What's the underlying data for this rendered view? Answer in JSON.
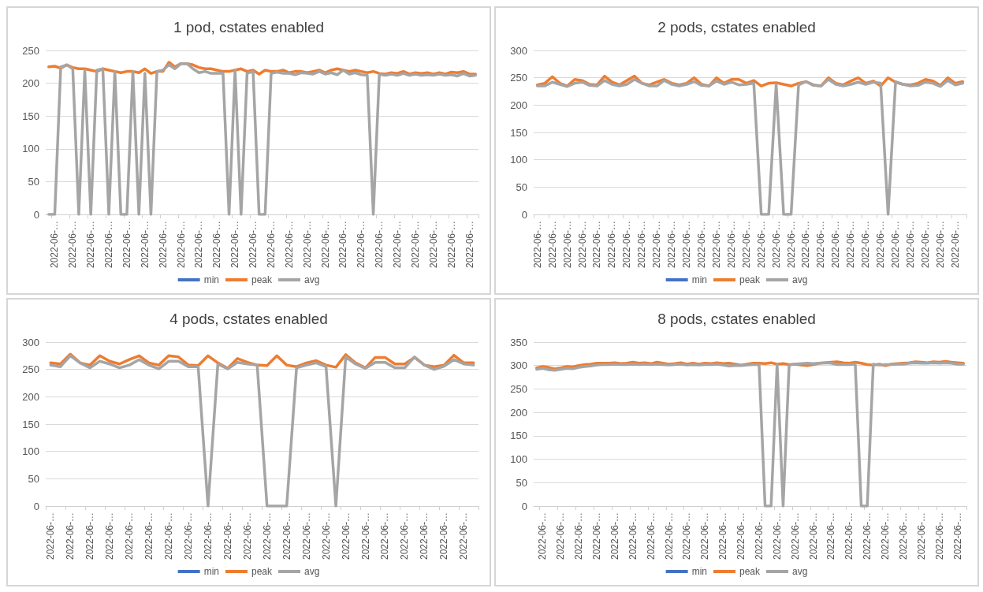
{
  "chart_data": [
    {
      "type": "line",
      "title": "1 pod, cstates enabled",
      "legend": "bottom",
      "grid": "y",
      "marker": "none",
      "line_style": "solid",
      "ylim": [
        0,
        250
      ],
      "yticks": [
        0,
        50,
        100,
        150,
        200,
        250
      ],
      "categories": [
        null,
        "2022-06-…",
        null,
        null,
        "2022-06-…",
        null,
        null,
        "2022-06-…",
        null,
        null,
        "2022-06-…",
        null,
        null,
        "2022-06-…",
        null,
        null,
        "2022-06-…",
        null,
        null,
        "2022-06-…",
        null,
        null,
        "2022-06-…",
        null,
        null,
        "2022-06-…",
        null,
        null,
        "2022-06-…",
        null,
        null,
        "2022-06-…",
        null,
        null,
        "2022-06-…",
        null,
        null,
        "2022-06-…",
        null,
        null,
        "2022-06-…",
        null,
        null,
        "2022-06-…",
        null,
        null,
        "2022-06-…",
        null,
        null,
        "2022-06-…",
        null,
        null,
        "2022-06-…",
        null,
        null,
        "2022-06-…",
        null,
        null,
        "2022-06-…",
        null,
        null,
        "2022-06-…",
        null,
        null,
        "2022-06-…",
        null,
        null,
        "2022-06-…",
        null,
        null,
        "2022-06-…",
        null
      ],
      "series": [
        {
          "name": "min",
          "color": "#4472c4",
          "values": [
            null,
            null,
            null,
            null,
            null,
            null,
            null,
            null,
            null,
            null,
            null,
            null,
            null,
            null,
            null,
            null,
            null,
            null,
            null,
            null,
            null,
            null,
            null,
            null,
            null,
            null,
            null,
            null,
            null,
            null,
            null,
            null,
            null,
            null,
            null,
            null,
            null,
            null,
            null,
            null,
            null,
            null,
            null,
            null,
            null,
            null,
            null,
            null,
            null,
            null,
            null,
            null,
            null,
            null,
            null,
            null,
            null,
            null,
            null,
            null,
            null,
            null,
            null,
            null,
            null,
            null,
            null,
            null,
            null,
            null,
            null,
            null
          ]
        },
        {
          "name": "peak",
          "color": "#ed7d31",
          "values": [
            225,
            226,
            223,
            228,
            224,
            222,
            222,
            220,
            218,
            222,
            220,
            218,
            216,
            218,
            218,
            216,
            222,
            215,
            218,
            218,
            232,
            225,
            230,
            230,
            228,
            224,
            222,
            222,
            220,
            218,
            218,
            220,
            222,
            218,
            220,
            214,
            220,
            218,
            218,
            220,
            216,
            218,
            218,
            216,
            218,
            220,
            216,
            220,
            222,
            220,
            218,
            220,
            218,
            216,
            218,
            215,
            214,
            216,
            215,
            218,
            214,
            216,
            215,
            216,
            214,
            216,
            214,
            217,
            216,
            218,
            214,
            214
          ]
        },
        {
          "name": "avg",
          "color": "#a5a5a5",
          "values": [
            0,
            0,
            225,
            228,
            222,
            0,
            220,
            0,
            220,
            222,
            0,
            218,
            0,
            0,
            218,
            0,
            215,
            0,
            218,
            220,
            228,
            222,
            230,
            230,
            222,
            216,
            218,
            215,
            215,
            215,
            0,
            220,
            0,
            215,
            218,
            0,
            0,
            215,
            217,
            215,
            215,
            213,
            216,
            215,
            214,
            218,
            214,
            216,
            213,
            220,
            214,
            216,
            213,
            212,
            0,
            214,
            212,
            214,
            212,
            215,
            212,
            214,
            212,
            213,
            212,
            214,
            212,
            213,
            211,
            215,
            211,
            212
          ]
        }
      ]
    },
    {
      "type": "line",
      "title": "2 pods, cstates enabled",
      "legend": "bottom",
      "grid": "y",
      "marker": "none",
      "line_style": "solid",
      "ylim": [
        0,
        300
      ],
      "yticks": [
        0,
        50,
        100,
        150,
        200,
        250,
        300
      ],
      "categories": [
        "2022-06-…",
        null,
        "2022-06-…",
        null,
        "2022-06-…",
        null,
        "2022-06-…",
        null,
        "2022-06-…",
        null,
        "2022-06-…",
        null,
        "2022-06-…",
        null,
        "2022-06-…",
        null,
        "2022-06-…",
        null,
        "2022-06-…",
        null,
        "2022-06-…",
        null,
        "2022-06-…",
        null,
        "2022-06-…",
        null,
        "2022-06-…",
        null,
        "2022-06-…",
        null,
        "2022-06-…",
        null,
        "2022-06-…",
        null,
        "2022-06-…",
        null,
        "2022-06-…",
        null,
        "2022-06-…",
        null,
        "2022-06-…",
        null,
        "2022-06-…",
        null,
        "2022-06-…",
        null,
        "2022-06-…",
        null,
        "2022-06-…",
        null,
        "2022-06-…",
        null,
        "2022-06-…",
        null,
        "2022-06-…",
        null,
        "2022-06-…",
        null
      ],
      "series": [
        {
          "name": "min",
          "color": "#4472c4",
          "values": [
            null,
            null,
            null,
            null,
            null,
            null,
            null,
            null,
            null,
            null,
            null,
            null,
            null,
            null,
            null,
            null,
            null,
            null,
            null,
            null,
            null,
            null,
            null,
            null,
            null,
            null,
            null,
            null,
            null,
            null,
            null,
            null,
            null,
            null,
            null,
            null,
            null,
            null,
            null,
            null,
            null,
            null,
            null,
            null,
            null,
            null,
            null,
            null,
            null,
            null,
            null,
            null,
            null,
            null,
            null,
            null,
            null,
            null
          ]
        },
        {
          "name": "peak",
          "color": "#ed7d31",
          "values": [
            237,
            240,
            252,
            240,
            235,
            247,
            245,
            238,
            237,
            253,
            242,
            237,
            245,
            253,
            240,
            237,
            242,
            247,
            240,
            237,
            240,
            250,
            238,
            235,
            250,
            240,
            247,
            247,
            240,
            245,
            235,
            240,
            241,
            238,
            235,
            240,
            243,
            237,
            235,
            250,
            240,
            237,
            244,
            250,
            240,
            244,
            235,
            250,
            242,
            238,
            237,
            240,
            247,
            244,
            236,
            250,
            240,
            243
          ]
        },
        {
          "name": "avg",
          "color": "#a5a5a5",
          "values": [
            235,
            235,
            242,
            238,
            234,
            240,
            242,
            236,
            235,
            245,
            238,
            235,
            238,
            247,
            240,
            235,
            235,
            245,
            238,
            235,
            238,
            243,
            236,
            235,
            244,
            238,
            242,
            237,
            238,
            240,
            0,
            0,
            238,
            0,
            0,
            237,
            243,
            236,
            235,
            247,
            238,
            235,
            238,
            242,
            238,
            242,
            240,
            0,
            243,
            238,
            235,
            236,
            242,
            240,
            234,
            245,
            237,
            240
          ]
        }
      ]
    },
    {
      "type": "line",
      "title": "4 pods, cstates enabled",
      "legend": "bottom",
      "grid": "y",
      "marker": "none",
      "line_style": "solid",
      "ylim": [
        0,
        300
      ],
      "yticks": [
        0,
        50,
        100,
        150,
        200,
        250,
        300
      ],
      "categories": [
        "2022-06-…",
        null,
        "2022-06-…",
        null,
        "2022-06-…",
        null,
        "2022-06-…",
        null,
        "2022-06-…",
        null,
        "2022-06-…",
        null,
        "2022-06-…",
        null,
        "2022-06-…",
        null,
        "2022-06-…",
        null,
        "2022-06-…",
        null,
        "2022-06-…",
        null,
        "2022-06-…",
        null,
        "2022-06-…",
        null,
        "2022-06-…",
        null,
        "2022-06-…",
        null,
        "2022-06-…",
        null,
        "2022-06-…",
        null,
        "2022-06-…",
        null,
        "2022-06-…",
        null,
        "2022-06-…",
        null,
        "2022-06-…",
        null,
        "2022-06-…",
        null
      ],
      "series": [
        {
          "name": "min",
          "color": "#4472c4",
          "values": [
            null,
            null,
            null,
            null,
            null,
            null,
            null,
            null,
            null,
            null,
            null,
            null,
            null,
            null,
            null,
            null,
            null,
            null,
            null,
            null,
            null,
            null,
            null,
            null,
            null,
            null,
            null,
            null,
            null,
            null,
            null,
            null,
            null,
            null,
            null,
            null,
            null,
            null,
            null,
            null,
            null,
            null,
            null,
            null
          ]
        },
        {
          "name": "peak",
          "color": "#ed7d31",
          "values": [
            262,
            260,
            278,
            262,
            258,
            275,
            265,
            260,
            268,
            275,
            262,
            258,
            275,
            273,
            258,
            257,
            275,
            262,
            252,
            270,
            263,
            258,
            257,
            275,
            258,
            255,
            262,
            266,
            258,
            254,
            277,
            262,
            253,
            272,
            272,
            260,
            260,
            272,
            258,
            255,
            258,
            276,
            262,
            262
          ]
        },
        {
          "name": "avg",
          "color": "#a5a5a5",
          "values": [
            258,
            255,
            275,
            262,
            253,
            265,
            260,
            253,
            258,
            268,
            258,
            251,
            265,
            265,
            255,
            255,
            0,
            260,
            251,
            263,
            260,
            258,
            0,
            0,
            0,
            253,
            258,
            262,
            255,
            0,
            273,
            260,
            252,
            263,
            263,
            253,
            253,
            273,
            258,
            250,
            256,
            268,
            260,
            258
          ]
        }
      ]
    },
    {
      "type": "line",
      "title": "8 pods, cstates enabled",
      "legend": "bottom",
      "grid": "y",
      "marker": "none",
      "line_style": "solid",
      "ylim": [
        0,
        350
      ],
      "yticks": [
        0,
        50,
        100,
        150,
        200,
        250,
        300,
        350
      ],
      "categories": [
        null,
        "2022-06-…",
        null,
        null,
        "2022-06-…",
        null,
        null,
        "2022-06-…",
        null,
        null,
        "2022-06-…",
        null,
        null,
        "2022-06-…",
        null,
        null,
        "2022-06-…",
        null,
        null,
        "2022-06-…",
        null,
        null,
        "2022-06-…",
        null,
        null,
        "2022-06-…",
        null,
        null,
        "2022-06-…",
        null,
        null,
        "2022-06-…",
        null,
        null,
        "2022-06-…",
        null,
        null,
        "2022-06-…",
        null,
        null,
        "2022-06-…",
        null,
        null,
        "2022-06-…",
        null,
        null,
        "2022-06-…",
        null,
        null,
        "2022-06-…",
        null,
        null,
        "2022-06-…",
        null,
        null,
        "2022-06-…",
        null,
        null,
        "2022-06-…",
        null,
        null,
        "2022-06-…",
        null,
        null,
        "2022-06-…",
        null,
        null,
        "2022-06-…",
        null,
        null,
        "2022-06-…",
        null
      ],
      "series": [
        {
          "name": "min",
          "color": "#4472c4",
          "values": [
            null,
            null,
            null,
            null,
            null,
            null,
            null,
            null,
            null,
            null,
            null,
            null,
            null,
            null,
            null,
            null,
            null,
            null,
            null,
            null,
            null,
            null,
            null,
            null,
            null,
            null,
            null,
            null,
            null,
            null,
            null,
            null,
            null,
            null,
            null,
            null,
            null,
            null,
            null,
            null,
            null,
            null,
            null,
            null,
            null,
            null,
            null,
            null,
            null,
            null,
            null,
            null,
            null,
            null,
            null,
            null,
            null,
            null,
            null,
            null,
            null,
            null,
            null,
            null,
            null,
            null,
            null,
            null,
            null,
            null,
            null,
            null
          ]
        },
        {
          "name": "peak",
          "color": "#ed7d31",
          "values": [
            295,
            298,
            296,
            293,
            295,
            298,
            297,
            300,
            302,
            303,
            305,
            305,
            305,
            306,
            304,
            305,
            307,
            305,
            306,
            304,
            307,
            305,
            303,
            304,
            306,
            303,
            305,
            303,
            305,
            304,
            306,
            304,
            305,
            303,
            301,
            303,
            305,
            305,
            304,
            306,
            303,
            304,
            302,
            303,
            301,
            300,
            302,
            305,
            306,
            307,
            308,
            306,
            305,
            307,
            305,
            302,
            301,
            303,
            300,
            303,
            304,
            305,
            306,
            308,
            307,
            306,
            308,
            307,
            309,
            307,
            306,
            305
          ]
        },
        {
          "name": "avg",
          "color": "#a5a5a5",
          "values": [
            292,
            294,
            291,
            290,
            292,
            294,
            293,
            296,
            298,
            299,
            301,
            302,
            302,
            303,
            302,
            302,
            303,
            302,
            303,
            302,
            303,
            302,
            301,
            302,
            303,
            301,
            302,
            301,
            302,
            302,
            303,
            301,
            299,
            300,
            300,
            301,
            302,
            302,
            0,
            0,
            303,
            0,
            301,
            303,
            304,
            305,
            304,
            305,
            306,
            305,
            302,
            302,
            302,
            303,
            0,
            0,
            303,
            301,
            302,
            302,
            303,
            303,
            305,
            306,
            305,
            305,
            306,
            305,
            306,
            305,
            303,
            303
          ]
        }
      ]
    }
  ]
}
